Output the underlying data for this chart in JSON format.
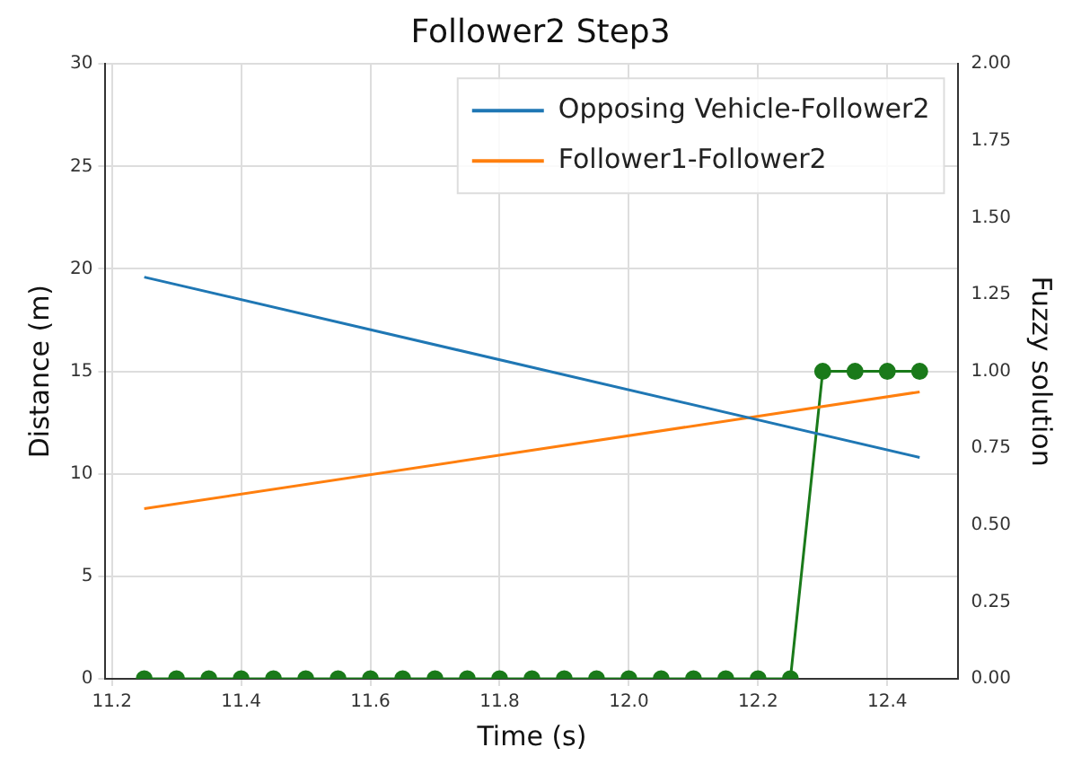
{
  "chart_data": {
    "type": "line",
    "title": "Follower2 Step3",
    "xlabel": "Time (s)",
    "ylabel": "Distance (m)",
    "y2label": "Fuzzy solution",
    "xlim": [
      11.19,
      12.51
    ],
    "xticks": [
      {
        "value": 11.2,
        "label": "11.2"
      },
      {
        "value": 11.4,
        "label": "11.4"
      },
      {
        "value": 11.6,
        "label": "11.6"
      },
      {
        "value": 11.8,
        "label": "11.8"
      },
      {
        "value": 12.0,
        "label": "12.0"
      },
      {
        "value": 12.2,
        "label": "12.2"
      },
      {
        "value": 12.4,
        "label": "12.4"
      }
    ],
    "ylim": [
      0,
      30
    ],
    "yticks": [
      0,
      5,
      10,
      15,
      20,
      25,
      30
    ],
    "y2lim": [
      0,
      2
    ],
    "y2ticks": [
      {
        "value": 0,
        "label": "0.00"
      },
      {
        "value": 0.25,
        "label": "0.25"
      },
      {
        "value": 0.5,
        "label": "0.50"
      },
      {
        "value": 0.75,
        "label": "0.75"
      },
      {
        "value": 1,
        "label": "1.00"
      },
      {
        "value": 1.25,
        "label": "1.25"
      },
      {
        "value": 1.5,
        "label": "1.50"
      },
      {
        "value": 1.75,
        "label": "1.75"
      },
      {
        "value": 2,
        "label": "2.00"
      }
    ],
    "grid": true,
    "legend": "top right",
    "line_style": "solid",
    "series": [
      {
        "name": "Opposing Vehicle-Follower2",
        "color": "#1f77b4",
        "x": [
          11.25,
          12.45
        ],
        "values": [
          19.6,
          10.8
        ],
        "marker": "none"
      },
      {
        "name": "Follower1-Follower2",
        "color": "#ff7f0e",
        "x": [
          11.25,
          12.45
        ],
        "values": [
          8.3,
          14.0
        ],
        "marker": "none"
      },
      {
        "color": "#1a7a1a",
        "axis": "y2",
        "marker": "circle",
        "x": [
          11.25,
          11.3,
          11.35,
          11.4,
          11.45,
          11.5,
          11.55,
          11.6,
          11.65,
          11.7,
          11.75,
          11.8,
          11.85,
          11.9,
          11.95,
          12.0,
          12.05,
          12.1,
          12.15,
          12.2,
          12.25,
          12.3,
          12.35,
          12.4,
          12.45
        ],
        "values": [
          0,
          0,
          0,
          0,
          0,
          0,
          0,
          0,
          0,
          0,
          0,
          0,
          0,
          0,
          0,
          0,
          0,
          0,
          0,
          0,
          0,
          1,
          1,
          1,
          1
        ]
      }
    ]
  }
}
